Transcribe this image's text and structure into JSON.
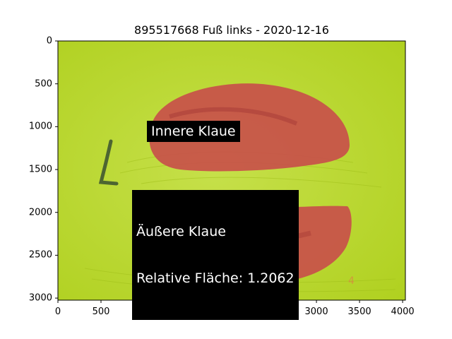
{
  "figure": {
    "title": "895517668 Fuß links - 2020-12-16",
    "annotations": [
      {
        "id": "innere",
        "text": "Innere Klaue",
        "x": 1070,
        "y": 1050
      },
      {
        "id": "aeussere",
        "lines": [
          "Äußere Klaue",
          "Relative Fläche: 1.2062"
        ],
        "x": 900,
        "y": 1980
      }
    ]
  },
  "chart_data": {
    "type": "image",
    "xlim": [
      0,
      4032
    ],
    "ylim": [
      3024,
      0
    ],
    "xticks": [
      0,
      500,
      1000,
      1500,
      2000,
      2500,
      3000,
      3500,
      4000
    ],
    "yticks": [
      0,
      500,
      1000,
      1500,
      2000,
      2500,
      3000
    ],
    "xtick_labels": [
      "0",
      "500",
      "1000",
      "1500",
      "2000",
      "2500",
      "3000",
      "3500",
      "4000"
    ],
    "ytick_labels": [
      "0",
      "500",
      "1000",
      "1500",
      "2000",
      "2500",
      "3000"
    ]
  },
  "colors": {
    "background_fabric": "#b8d82a",
    "claw_overlay": "#c8504a",
    "label_box": "#000000"
  }
}
